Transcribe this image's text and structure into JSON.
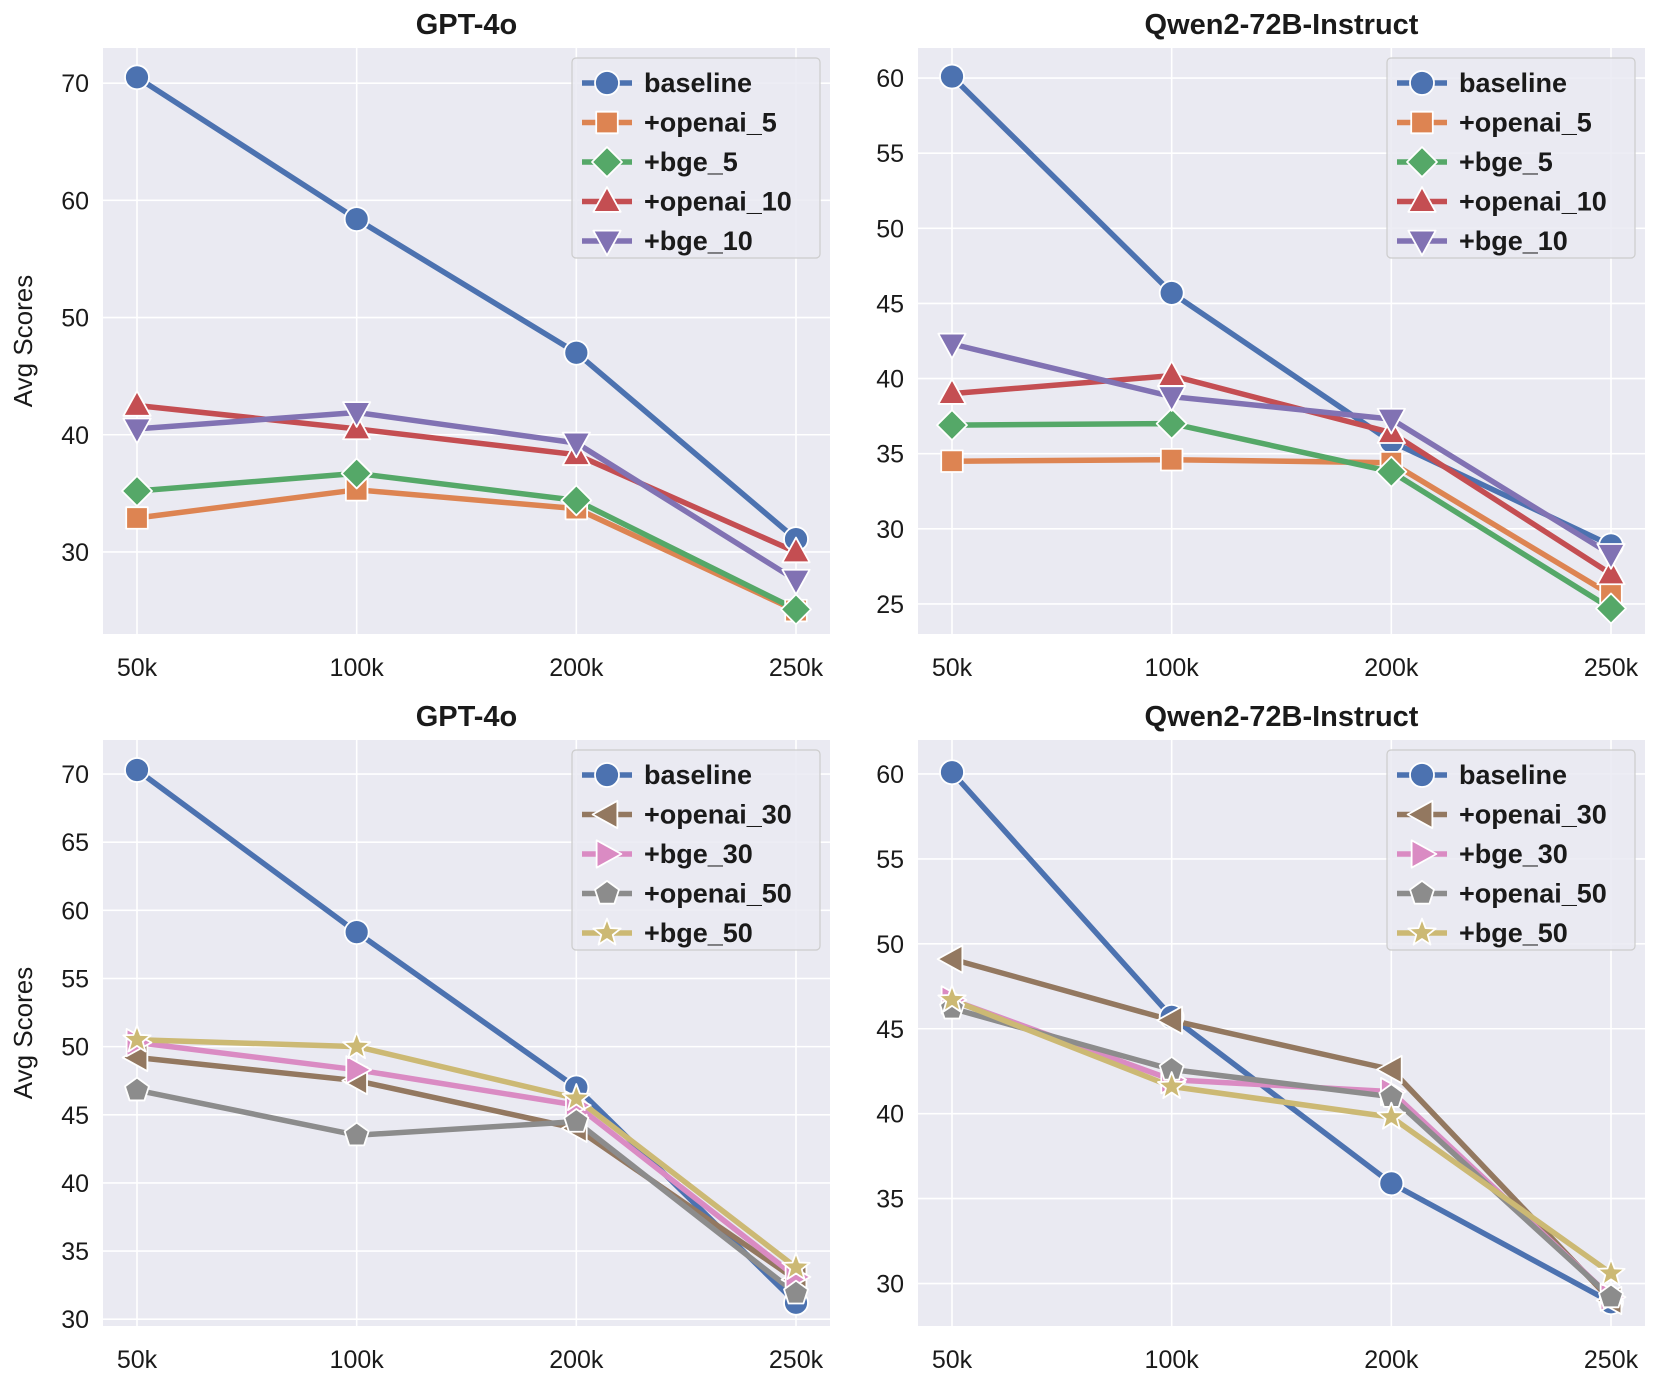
{
  "colors": {
    "baseline": "#4c72b0",
    "orange": "#dd8452",
    "green": "#55a868",
    "red": "#c44e52",
    "purple": "#8172b3",
    "brown": "#937860",
    "pink": "#da8bc3",
    "gray": "#8c8c8c",
    "olive": "#ccb974",
    "panel_bg": "#eaeaf2",
    "grid": "#ffffff"
  },
  "chart_data": [
    {
      "type": "line",
      "title": "GPT-4o",
      "ylabel": "Avg Scores",
      "xlabel": "",
      "categories": [
        "50k",
        "100k",
        "200k",
        "250k"
      ],
      "ylim": [
        23,
        73
      ],
      "yticks": [
        30,
        40,
        50,
        60,
        70
      ],
      "grid": true,
      "legend_position": "top-right",
      "series": [
        {
          "name": "baseline",
          "marker": "circle",
          "color": "#4c72b0",
          "values": [
            70.5,
            58.4,
            47.0,
            31.1
          ]
        },
        {
          "name": "+openai_5",
          "marker": "square",
          "color": "#dd8452",
          "values": [
            32.9,
            35.3,
            33.7,
            25.0
          ]
        },
        {
          "name": "+bge_5",
          "marker": "diamond",
          "color": "#55a868",
          "values": [
            35.2,
            36.7,
            34.4,
            25.1
          ]
        },
        {
          "name": "+openai_10",
          "marker": "triangle-up",
          "color": "#c44e52",
          "values": [
            42.5,
            40.5,
            38.3,
            30.0
          ]
        },
        {
          "name": "+bge_10",
          "marker": "triangle-down",
          "color": "#8172b3",
          "values": [
            40.5,
            41.9,
            39.3,
            27.6
          ]
        }
      ]
    },
    {
      "type": "line",
      "title": "Qwen2-72B-Instruct",
      "ylabel": "",
      "xlabel": "",
      "categories": [
        "50k",
        "100k",
        "200k",
        "250k"
      ],
      "ylim": [
        23,
        62
      ],
      "yticks": [
        25,
        30,
        35,
        40,
        45,
        50,
        55,
        60
      ],
      "grid": true,
      "legend_position": "top-right",
      "series": [
        {
          "name": "baseline",
          "marker": "circle",
          "color": "#4c72b0",
          "values": [
            60.1,
            45.7,
            35.8,
            28.9
          ]
        },
        {
          "name": "+openai_5",
          "marker": "square",
          "color": "#dd8452",
          "values": [
            34.5,
            34.6,
            34.4,
            25.6
          ]
        },
        {
          "name": "+bge_5",
          "marker": "diamond",
          "color": "#55a868",
          "values": [
            36.9,
            37.0,
            33.8,
            24.7
          ]
        },
        {
          "name": "+openai_10",
          "marker": "triangle-up",
          "color": "#c44e52",
          "values": [
            39.0,
            40.2,
            36.4,
            27.0
          ]
        },
        {
          "name": "+bge_10",
          "marker": "triangle-down",
          "color": "#8172b3",
          "values": [
            42.3,
            38.8,
            37.3,
            28.3
          ]
        }
      ]
    },
    {
      "type": "line",
      "title": "GPT-4o",
      "ylabel": "Avg Scores",
      "xlabel": "",
      "categories": [
        "50k",
        "100k",
        "200k",
        "250k"
      ],
      "ylim": [
        29.5,
        72.5
      ],
      "yticks": [
        30,
        35,
        40,
        45,
        50,
        55,
        60,
        65,
        70
      ],
      "grid": true,
      "legend_position": "top-right",
      "series": [
        {
          "name": "baseline",
          "marker": "circle",
          "color": "#4c72b0",
          "values": [
            70.3,
            58.4,
            47.0,
            31.2
          ]
        },
        {
          "name": "+openai_30",
          "marker": "triangle-left",
          "color": "#937860",
          "values": [
            49.2,
            47.5,
            44.0,
            32.9
          ]
        },
        {
          "name": "+bge_30",
          "marker": "triangle-right",
          "color": "#da8bc3",
          "values": [
            50.3,
            48.3,
            45.7,
            33.1
          ]
        },
        {
          "name": "+openai_50",
          "marker": "pentagon",
          "color": "#8c8c8c",
          "values": [
            46.8,
            43.5,
            44.5,
            31.9
          ]
        },
        {
          "name": "+bge_50",
          "marker": "star",
          "color": "#ccb974",
          "values": [
            50.5,
            50.0,
            46.2,
            33.8
          ]
        }
      ]
    },
    {
      "type": "line",
      "title": "Qwen2-72B-Instruct",
      "ylabel": "",
      "xlabel": "",
      "categories": [
        "50k",
        "100k",
        "200k",
        "250k"
      ],
      "ylim": [
        27.5,
        62
      ],
      "yticks": [
        30,
        35,
        40,
        45,
        50,
        55,
        60
      ],
      "grid": true,
      "legend_position": "top-right",
      "series": [
        {
          "name": "baseline",
          "marker": "circle",
          "color": "#4c72b0",
          "values": [
            60.1,
            45.7,
            35.9,
            28.9
          ]
        },
        {
          "name": "+openai_30",
          "marker": "triangle-left",
          "color": "#937860",
          "values": [
            49.1,
            45.5,
            42.6,
            29.0
          ]
        },
        {
          "name": "+bge_30",
          "marker": "triangle-right",
          "color": "#da8bc3",
          "values": [
            46.7,
            42.0,
            41.3,
            29.2
          ]
        },
        {
          "name": "+openai_50",
          "marker": "pentagon",
          "color": "#8c8c8c",
          "values": [
            46.2,
            42.6,
            41.0,
            29.2
          ]
        },
        {
          "name": "+bge_50",
          "marker": "star",
          "color": "#ccb974",
          "values": [
            46.7,
            41.6,
            39.8,
            30.6
          ]
        }
      ]
    }
  ]
}
